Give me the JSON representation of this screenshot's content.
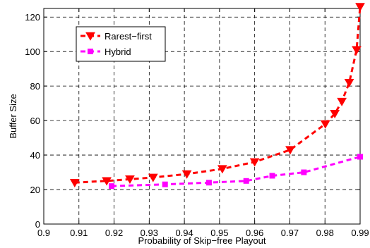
{
  "chart_data": {
    "type": "line",
    "xlabel": "Probability of Skip−free Playout",
    "ylabel": "Buffer Size",
    "xlim": [
      0.9,
      0.99
    ],
    "ylim": [
      0,
      125
    ],
    "x_ticks": [
      0.9,
      0.91,
      0.92,
      0.93,
      0.94,
      0.95,
      0.96,
      0.97,
      0.98,
      0.99
    ],
    "x_tick_labels": [
      "0.9",
      "0.91",
      "0.92",
      "0.93",
      "0.94",
      "0.95",
      "0.96",
      "0.97",
      "0.98",
      "0.99"
    ],
    "y_ticks": [
      0,
      20,
      40,
      60,
      80,
      100,
      120
    ],
    "y_tick_labels": [
      "0",
      "20",
      "40",
      "60",
      "80",
      "100",
      "120"
    ],
    "grid": true,
    "legend_position": "top-left",
    "series": [
      {
        "name": "Rarest−first",
        "color": "#ff0000",
        "line_style": "dashed",
        "marker": "triangle-down",
        "x": [
          0.9088,
          0.9179,
          0.9245,
          0.9311,
          0.9407,
          0.9508,
          0.96,
          0.9701,
          0.9801,
          0.9828,
          0.9848,
          0.9869,
          0.989,
          0.99
        ],
        "y": [
          24,
          25,
          26,
          27,
          29,
          32,
          36,
          43,
          58,
          64,
          71,
          82,
          101,
          126
        ]
      },
      {
        "name": "Hybrid",
        "color": "#ff00ff",
        "line_style": "dashed",
        "marker": "square",
        "x": [
          0.9193,
          0.9345,
          0.947,
          0.9576,
          0.965,
          0.974,
          0.99
        ],
        "y": [
          22,
          23,
          24,
          25,
          28,
          30,
          39
        ]
      }
    ]
  }
}
